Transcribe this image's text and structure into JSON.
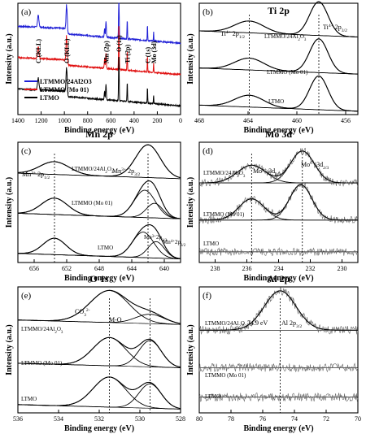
{
  "chart_data": [
    {
      "panel": "(a)",
      "type": "line",
      "title": "",
      "xlabel": "Binding energy (eV)",
      "ylabel": "Intensity (a.u.)",
      "xlim": [
        1400,
        0
      ],
      "xticks": [
        "1400",
        "1200",
        "1000",
        "800",
        "600",
        "400",
        "200",
        "0"
      ],
      "peak_labels": [
        {
          "text": "C (KLL)",
          "x": 1225
        },
        {
          "text": "O (KLL)",
          "x": 980
        },
        {
          "text": "Mn (2p)",
          "x": 642
        },
        {
          "text": "O (1s)",
          "x": 531
        },
        {
          "text": "Ti (2p)",
          "x": 459
        },
        {
          "text": "C (1s)",
          "x": 285
        },
        {
          "text": "Mo (3d)",
          "x": 232
        }
      ],
      "series": [
        {
          "name": "LTMMO/24Al2O3",
          "color": "#1f1fd6",
          "offset": 2.05
        },
        {
          "name": "LTMMO (Mo 01)",
          "color": "#e01010",
          "offset": 1.15
        },
        {
          "name": "LTMO",
          "color": "#000000",
          "offset": 0.25
        }
      ]
    },
    {
      "panel": "(b)",
      "type": "line",
      "title": "Ti 2p",
      "xlabel": "Binding energy (eV)",
      "ylabel": "Intensity (a.u.)",
      "xlim": [
        468,
        455
      ],
      "xticks": [
        "468",
        "464",
        "460",
        "456"
      ],
      "peak_positions": [
        463.9,
        458.2
      ],
      "peak_labels": [
        "Ti4+ 2p1/2",
        "Ti4+ 2p3/2"
      ],
      "series": [
        {
          "name": "LTMMO/24Al2O3",
          "offset": 2.3,
          "peaks": [
            [
              463.9,
              0.35,
              1.2
            ],
            [
              458.2,
              1.0,
              0.75
            ]
          ]
        },
        {
          "name": "LTMMO (Mo 01)",
          "offset": 1.2,
          "peaks": [
            [
              463.9,
              0.35,
              1.2
            ],
            [
              458.2,
              1.0,
              0.75
            ]
          ]
        },
        {
          "name": "LTMO",
          "offset": 0.1,
          "peaks": [
            [
              463.9,
              0.35,
              1.2
            ],
            [
              458.2,
              1.0,
              0.75
            ]
          ]
        }
      ]
    },
    {
      "panel": "(c)",
      "type": "line",
      "title": "Mn 2p",
      "xlabel": "Binding energy (eV)",
      "ylabel": "Intensity (a.u.)",
      "xlim": [
        658,
        638
      ],
      "xticks": [
        "656",
        "652",
        "648",
        "644",
        "640"
      ],
      "peak_positions": [
        653.5,
        642.0
      ],
      "peak_labels": [
        "Mn3+ 2p1/2",
        "Mn3+ 2p3/2",
        "Mn3+ 2p3/2",
        "Mn4+ 2p3/2"
      ],
      "series": [
        {
          "name": "LTMMO/24Al2O3",
          "offset": 2.3,
          "peaks": [
            [
              653.5,
              0.35,
              1.8
            ],
            [
              642.0,
              0.9,
              1.5
            ]
          ]
        },
        {
          "name": "LTMMO (Mo 01)",
          "offset": 1.2,
          "peaks": [
            [
              653.5,
              0.45,
              1.6
            ],
            [
              642.4,
              0.75,
              1.3
            ],
            [
              641.2,
              0.4,
              1.0
            ]
          ]
        },
        {
          "name": "LTMO",
          "offset": 0.1,
          "peaks": [
            [
              653.5,
              0.45,
              1.4
            ],
            [
              642.6,
              0.7,
              1.3
            ],
            [
              641.0,
              0.45,
              1.0
            ]
          ]
        }
      ]
    },
    {
      "panel": "(d)",
      "type": "line",
      "title": "Mo 3d",
      "xlabel": "Binding energy (eV)",
      "ylabel": "Intensity (a.u.)",
      "xlim": [
        239,
        229
      ],
      "xticks": [
        "238",
        "236",
        "234",
        "232",
        "230"
      ],
      "peak_positions": [
        235.7,
        232.5
      ],
      "peak_labels": [
        "Mo6+ 3d2/3",
        "Mo6+ 3d2/3"
      ],
      "series": [
        {
          "name": "LTMMO/24Al2O3",
          "offset": 2.25,
          "noisy": true,
          "peaks": [
            [
              235.7,
              0.5,
              0.9
            ],
            [
              232.5,
              0.9,
              0.75
            ]
          ]
        },
        {
          "name": "LTMMO (Mo 01)",
          "offset": 1.2,
          "noisy": true,
          "peaks": [
            [
              235.7,
              0.6,
              0.8
            ],
            [
              232.6,
              1.0,
              0.7
            ]
          ]
        },
        {
          "name": "LTMO",
          "offset": 0.3,
          "noisy": true,
          "peaks": []
        }
      ]
    },
    {
      "panel": "(e)",
      "type": "line",
      "title": "O 1s",
      "xlabel": "Binding energy (eV)",
      "ylabel": "Intensity (a.u.)",
      "xlim": [
        536,
        528
      ],
      "xticks": [
        "536",
        "534",
        "532",
        "530",
        "528"
      ],
      "peak_positions": [
        531.5,
        529.5
      ],
      "peak_labels": [
        "CO32-",
        "M-O"
      ],
      "series": [
        {
          "name": "LTMMO/24Al2O3",
          "offset": 2.35,
          "peaks": [
            [
              531.5,
              0.85,
              0.95
            ],
            [
              529.5,
              0.25,
              0.7
            ]
          ]
        },
        {
          "name": "LTMMO (Mo 01)",
          "offset": 1.2,
          "peaks": [
            [
              531.5,
              0.75,
              0.8
            ],
            [
              529.5,
              0.7,
              0.55
            ]
          ]
        },
        {
          "name": "LTMO",
          "offset": 0.1,
          "peaks": [
            [
              531.5,
              0.8,
              0.8
            ],
            [
              529.5,
              0.65,
              0.55
            ]
          ]
        }
      ]
    },
    {
      "panel": "(f)",
      "type": "line",
      "title": "Al 2p",
      "xlabel": "Binding energy (eV)",
      "ylabel": "Intensity (a.u.)",
      "xlim": [
        80,
        70
      ],
      "xticks": [
        "80",
        "78",
        "76",
        "74",
        "72",
        "70"
      ],
      "peak_positions": [
        74.9
      ],
      "peak_labels": [
        "74.9 eV",
        "Al 2p3/2"
      ],
      "series": [
        {
          "name": "LTMMO/24Al2O3",
          "offset": 2.1,
          "noisy": true,
          "peaks": [
            [
              74.9,
              1.0,
              1.0
            ]
          ]
        },
        {
          "name": "LTMMO (Mo 01)",
          "offset": 1.15,
          "noisy": true,
          "peaks": []
        },
        {
          "name": "LTMO",
          "offset": 0.4,
          "noisy": true,
          "peaks": []
        }
      ]
    }
  ]
}
